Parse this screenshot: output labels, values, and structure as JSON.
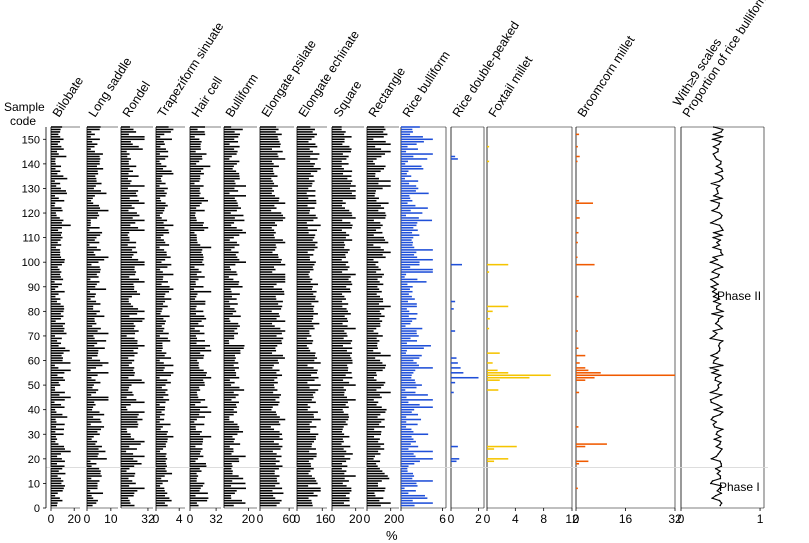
{
  "chart_data": {
    "type": "bar",
    "orientation": "horizontal",
    "title": "",
    "xlabel": "%",
    "ylabel": "Sample code",
    "ylim": [
      0,
      155
    ],
    "y_ticks": [
      0,
      10,
      20,
      30,
      40,
      50,
      60,
      70,
      80,
      90,
      100,
      110,
      120,
      130,
      140,
      150
    ],
    "n_samples": 155,
    "phases": [
      {
        "name": "Phase I",
        "from": 1,
        "to": 16
      },
      {
        "name": "Phase II",
        "from": 17,
        "to": 155
      }
    ],
    "phase_boundary": 16.5,
    "series": [
      {
        "name": "Bilobate",
        "color": "#000000",
        "xlim": [
          0,
          25
        ],
        "tick_labels": [
          "0",
          "20"
        ],
        "tick_values": [
          0,
          20
        ],
        "range": [
          3,
          17
        ],
        "wiggle": 0.35
      },
      {
        "name": "Long saddle",
        "color": "#000000",
        "xlim": [
          0,
          13
        ],
        "tick_labels": [
          "0",
          "10"
        ],
        "tick_values": [
          0,
          10
        ],
        "range": [
          1,
          9
        ],
        "wiggle": 0.4
      },
      {
        "name": "Rondel",
        "color": "#000000",
        "xlim": [
          0,
          38
        ],
        "tick_labels": [
          "32"
        ],
        "tick_values": [
          32
        ],
        "range": [
          6,
          28
        ],
        "wiggle": 0.3
      },
      {
        "name": "Trapeziform sinuate",
        "color": "#000000",
        "xlim": [
          0,
          5
        ],
        "tick_labels": [
          "0",
          "4"
        ],
        "tick_values": [
          0,
          4
        ],
        "range": [
          0.6,
          3.0
        ],
        "wiggle": 0.4
      },
      {
        "name": "Hair cell",
        "color": "#000000",
        "xlim": [
          0,
          38
        ],
        "tick_labels": [
          "0",
          "32"
        ],
        "tick_values": [
          0,
          32
        ],
        "range": [
          5,
          26
        ],
        "wiggle": 0.35
      },
      {
        "name": "Bulliform",
        "color": "#000000",
        "xlim": [
          0,
          27
        ],
        "tick_labels": [
          "20"
        ],
        "tick_values": [
          20
        ],
        "range": [
          4,
          18
        ],
        "wiggle": 0.35
      },
      {
        "name": "Elongate psilate",
        "color": "#000000",
        "xlim": [
          0,
          70
        ],
        "tick_labels": [
          "0",
          "60"
        ],
        "tick_values": [
          0,
          60
        ],
        "range": [
          22,
          52
        ],
        "wiggle": 0.15
      },
      {
        "name": "Elongate echinate",
        "color": "#000000",
        "xlim": [
          0,
          19
        ],
        "tick_labels": [
          "0",
          "16"
        ],
        "tick_values": [
          0,
          16
        ],
        "range": [
          6,
          15
        ],
        "wiggle": 0.15
      },
      {
        "name": "Square",
        "color": "#000000",
        "xlim": [
          0,
          27
        ],
        "tick_labels": [
          "0",
          "20"
        ],
        "tick_values": [
          0,
          20
        ],
        "range": [
          8,
          20
        ],
        "wiggle": 0.2
      },
      {
        "name": "Rectangle",
        "color": "#000000",
        "xlim": [
          0,
          27
        ],
        "tick_labels": [
          "0",
          "20"
        ],
        "tick_values": [
          0,
          20
        ],
        "range": [
          5,
          20
        ],
        "wiggle": 0.25
      },
      {
        "name": "Rice bulliform",
        "color": "#1f4fd8",
        "xlim": [
          0,
          6.5
        ],
        "tick_labels": [
          "0",
          "6"
        ],
        "tick_values": [
          0,
          6
        ],
        "range": [
          0.5,
          4.6
        ],
        "wiggle": 0.45
      },
      {
        "name": "Rice double-peaked",
        "color": "#1f4fd8",
        "xlim": [
          0,
          2.4
        ],
        "tick_labels": [
          "0",
          "2"
        ],
        "tick_values": [
          0,
          2
        ],
        "peaks": [
          [
            143,
            0.3
          ],
          [
            142,
            0.5
          ],
          [
            99,
            0.8
          ],
          [
            84,
            0.3
          ],
          [
            81,
            0.2
          ],
          [
            72,
            0.3
          ],
          [
            61,
            0.4
          ],
          [
            59,
            0.5
          ],
          [
            57,
            0.7
          ],
          [
            55,
            0.9
          ],
          [
            53,
            2.0
          ],
          [
            51,
            0.3
          ],
          [
            47,
            0.2
          ],
          [
            25,
            0.5
          ],
          [
            20,
            0.6
          ],
          [
            19,
            0.4
          ]
        ]
      },
      {
        "name": "Foxtail millet",
        "color": "#f5c400",
        "xlim": [
          0,
          12
        ],
        "tick_labels": [
          "0",
          "4",
          "8",
          "12"
        ],
        "tick_values": [
          0,
          4,
          8,
          12
        ],
        "peaks": [
          [
            147,
            0.3
          ],
          [
            141,
            0.3
          ],
          [
            99,
            3.0
          ],
          [
            96,
            0.3
          ],
          [
            82,
            3.0
          ],
          [
            80,
            0.8
          ],
          [
            77,
            0.4
          ],
          [
            73,
            0.3
          ],
          [
            63,
            1.8
          ],
          [
            59,
            0.8
          ],
          [
            56,
            1.5
          ],
          [
            55,
            3.0
          ],
          [
            54,
            9.0
          ],
          [
            53,
            6.0
          ],
          [
            52,
            1.8
          ],
          [
            48,
            1.6
          ],
          [
            25,
            4.2
          ],
          [
            24,
            1.0
          ],
          [
            20,
            3.0
          ],
          [
            19,
            1.0
          ]
        ]
      },
      {
        "name": "Broomcorn millet",
        "color": "#f05a00",
        "xlim": [
          0,
          32
        ],
        "tick_labels": [
          "0",
          "16",
          "32"
        ],
        "tick_values": [
          0,
          16,
          32
        ],
        "peaks": [
          [
            152,
            1.0
          ],
          [
            147,
            0.6
          ],
          [
            143,
            1.2
          ],
          [
            141,
            0.5
          ],
          [
            125,
            1.0
          ],
          [
            124,
            5.5
          ],
          [
            118,
            1.2
          ],
          [
            112,
            0.8
          ],
          [
            108,
            0.6
          ],
          [
            102,
            0.5
          ],
          [
            99,
            6.0
          ],
          [
            86,
            0.8
          ],
          [
            72,
            0.6
          ],
          [
            65,
            0.8
          ],
          [
            62,
            3.0
          ],
          [
            59,
            1.2
          ],
          [
            57,
            3.0
          ],
          [
            56,
            4.0
          ],
          [
            55,
            8.0
          ],
          [
            54,
            32.0
          ],
          [
            53,
            6.0
          ],
          [
            52,
            3.0
          ],
          [
            47,
            1.0
          ],
          [
            33,
            0.8
          ],
          [
            26,
            10.0
          ],
          [
            25,
            3.0
          ],
          [
            19,
            4.0
          ],
          [
            18,
            1.0
          ],
          [
            8,
            0.6
          ]
        ]
      },
      {
        "name": "Proportion of rice bulliform\nWith≥9 scales",
        "color": "#000000",
        "xlim": [
          0,
          1.05
        ],
        "tick_labels": [
          "0",
          "1"
        ],
        "tick_values": [
          0,
          1
        ],
        "line": true,
        "center": 0.45,
        "amp": 0.08
      }
    ]
  }
}
